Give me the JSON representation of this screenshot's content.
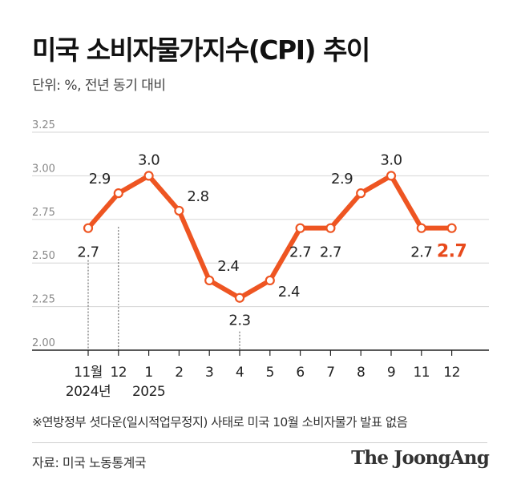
{
  "header": {
    "title": "미국 소비자물가지수(CPI) 추이",
    "unit": "단위: %, 전년 동기 대비"
  },
  "footer": {
    "note": "※연방정부 셧다운(일시적업무정지) 사태로 미국 10월 소비자물가 발표 없음",
    "source": "자료: 미국 노동통계국",
    "brand": "The JoongAng"
  },
  "colors": {
    "line": "#ee5522",
    "highlight": "#e84a1c",
    "marker_fill": "#ffffff",
    "grid": "#d6d6d6",
    "axis": "#222222",
    "text": "#222222"
  },
  "chart_data": {
    "type": "line",
    "categories": [
      "11월",
      "12",
      "1",
      "2",
      "3",
      "4",
      "5",
      "6",
      "7",
      "8",
      "9",
      "11",
      "12"
    ],
    "year_labels": [
      {
        "category": "11월",
        "text": "2024년"
      },
      {
        "category": "1",
        "text": "2025"
      }
    ],
    "values": [
      2.7,
      2.9,
      3.0,
      2.8,
      2.4,
      2.3,
      2.4,
      2.7,
      2.7,
      2.9,
      3.0,
      2.7,
      2.7
    ],
    "data_labels": [
      "2.7",
      "2.9",
      "3.0",
      "2.8",
      "2.4",
      "2.3",
      "2.4",
      "2.7",
      "2.7",
      "2.9",
      "3.0",
      "2.7",
      "2.7"
    ],
    "highlight_last": true,
    "ylim": [
      2.0,
      3.25
    ],
    "yticks": [
      "2.00",
      "2.25",
      "2.50",
      "2.75",
      "3.00",
      "3.25"
    ],
    "grid": true,
    "reference_lines_at": [
      "11월",
      "4",
      "12"
    ]
  }
}
